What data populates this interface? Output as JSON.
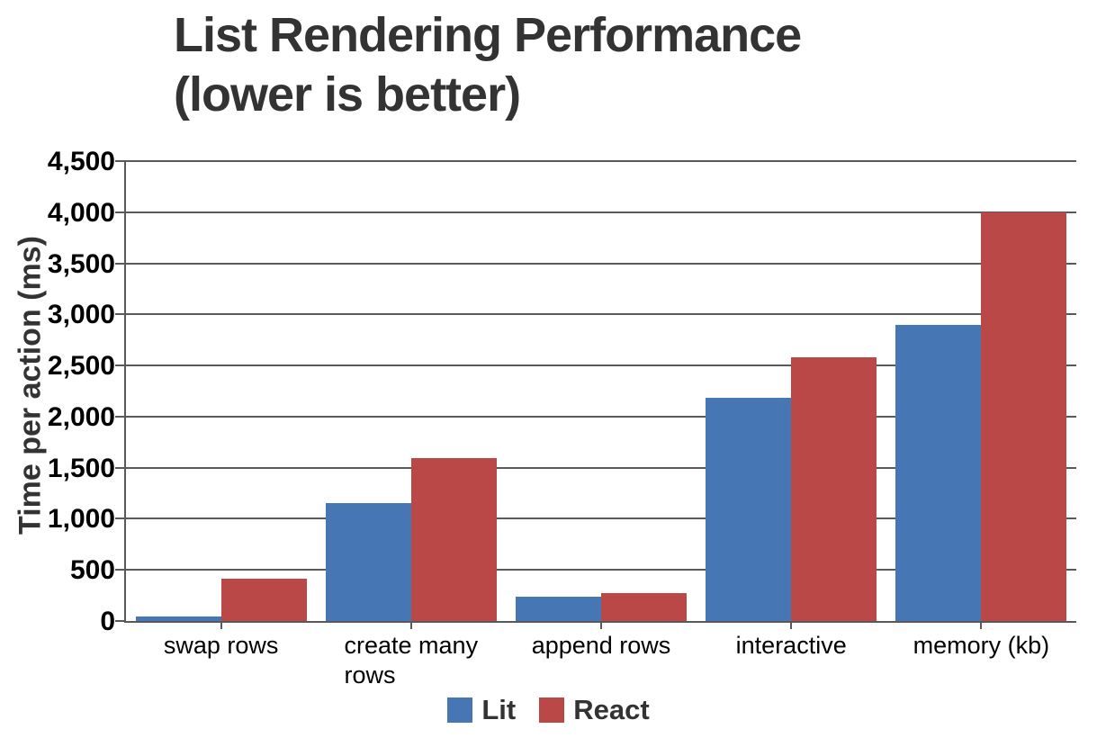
{
  "chart_data": {
    "type": "bar",
    "title": "List Rendering Performance (lower is better)",
    "title_lines": [
      "List Rendering Performance",
      "(lower is better)"
    ],
    "ylabel": "Time per action (ms)",
    "xlabel": "",
    "categories": [
      "swap rows",
      "create many rows",
      "append rows",
      "interactive",
      "memory (kb)"
    ],
    "categories_display": [
      [
        "swap rows"
      ],
      [
        "create many",
        "rows"
      ],
      [
        "append rows"
      ],
      [
        "interactive"
      ],
      [
        "memory (kb)"
      ]
    ],
    "series": [
      {
        "name": "Lit",
        "color": "#4776B4",
        "values": [
          45,
          1150,
          240,
          2180,
          2900
        ]
      },
      {
        "name": "React",
        "color": "#B94847",
        "values": [
          410,
          1590,
          275,
          2580,
          4000
        ]
      }
    ],
    "ylim": [
      0,
      4500
    ],
    "ytick_step": 500,
    "ytick_labels": [
      "0",
      "500",
      "1,000",
      "1,500",
      "2,000",
      "2,500",
      "3,000",
      "3,500",
      "4,000",
      "4,500"
    ],
    "grid": true,
    "legend_position": "bottom",
    "colors": {
      "axis_and_grid": "#595959",
      "tick_label": "#000000",
      "title_text": "#333333"
    }
  }
}
